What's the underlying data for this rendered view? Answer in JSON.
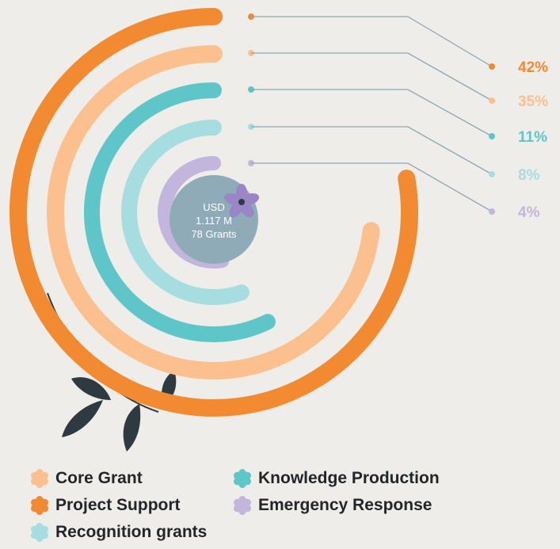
{
  "chart_data": {
    "type": "radial-bar",
    "title": "",
    "center_label": [
      "USD",
      "1.117 M",
      "78 Grants"
    ],
    "series": [
      {
        "name": "Project Support",
        "value": 42,
        "label": "42%",
        "color": "#f28a32"
      },
      {
        "name": "Core Grant",
        "value": 35,
        "label": "35%",
        "color": "#fbc08e"
      },
      {
        "name": "Knowledge Production",
        "value": 11,
        "label": "11%",
        "color": "#5ec6c8"
      },
      {
        "name": "Recognition grants",
        "value": 8,
        "label": "8%",
        "color": "#a6dde0"
      },
      {
        "name": "Emergency Response",
        "value": 4,
        "label": "4%",
        "color": "#c2b6dc"
      }
    ],
    "legend": [
      "Core Grant",
      "Knowledge Production",
      "Project Support",
      "Emergency Response",
      "Recognition grants"
    ],
    "legend_placement": "bottom",
    "colors": {
      "background": "#efede9",
      "center_circle": "#8fabb8",
      "leader_line": "#8aa7b4",
      "foliage": "#2e3a3f"
    }
  }
}
